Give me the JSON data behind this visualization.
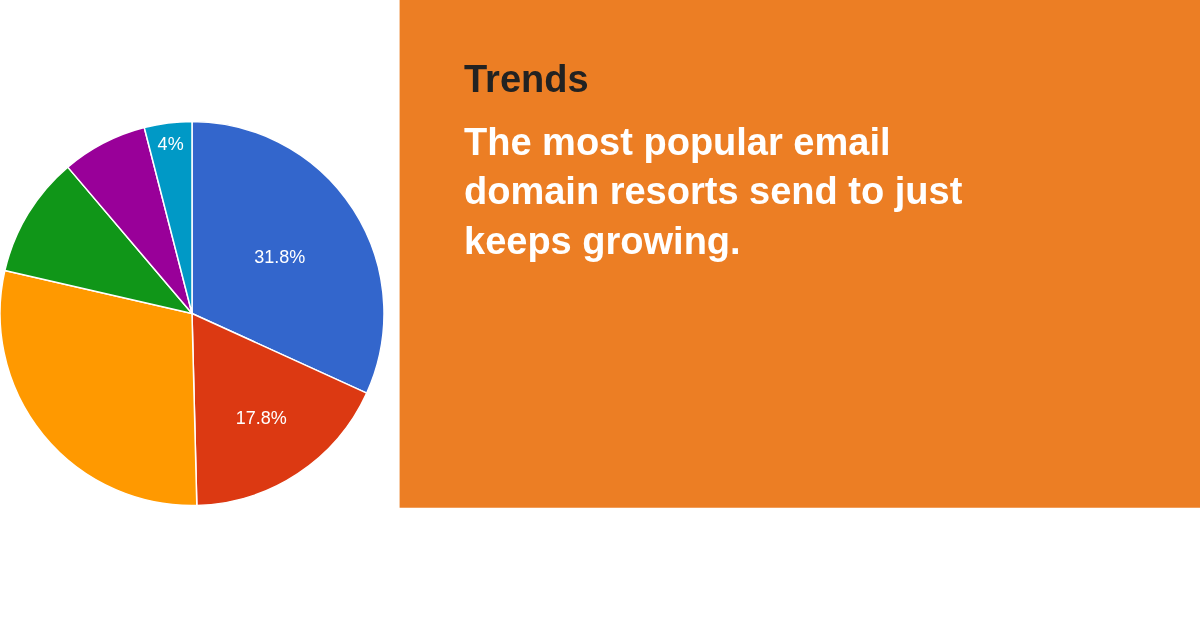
{
  "chart_data": {
    "type": "pie",
    "title": "Trends",
    "subtitle": "The most popular email domain resorts send to just keeps growing.",
    "categories": [
      null,
      null,
      null,
      null,
      null,
      null
    ],
    "values": [
      31.8,
      17.8,
      29.0,
      10.2,
      7.2,
      4
    ],
    "colors": [
      "#3366cc",
      "#dc3912",
      "#ff9900",
      "#109618",
      "#990099",
      "#0099c6"
    ],
    "value_labels": [
      "31.8%",
      "17.8%",
      null,
      null,
      null,
      "4%"
    ]
  }
}
